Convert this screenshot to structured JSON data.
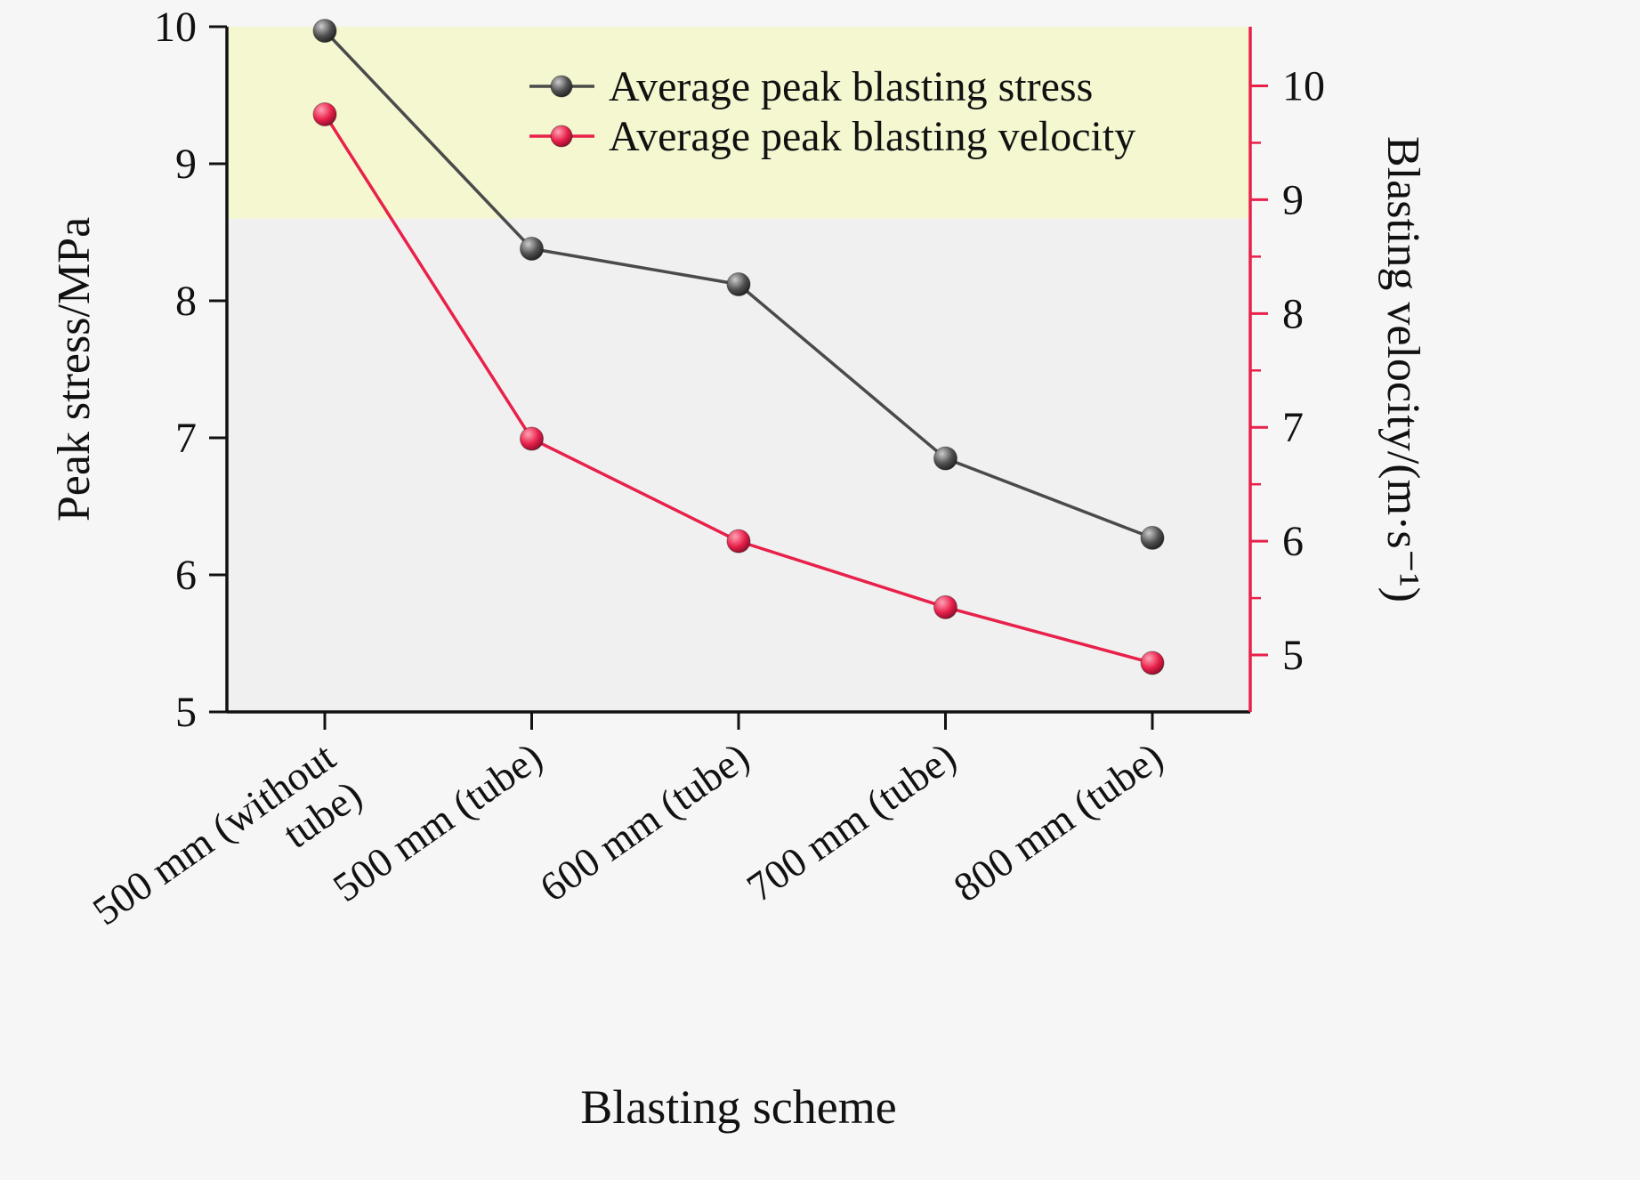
{
  "figure": {
    "background": "#f6f6f6",
    "plot_background": "#f0f0f0"
  },
  "chart_data": {
    "type": "line",
    "xlabel": "Blasting scheme",
    "left_axis": {
      "label": "Peak stress/MPa",
      "min": 5,
      "max": 10,
      "ticks": [
        5,
        6,
        7,
        8,
        9,
        10
      ],
      "color": "#111111"
    },
    "right_axis": {
      "label": "Blasting velocity/(m·s⁻¹)",
      "min": 4.5,
      "max": 10.52,
      "ticks": [
        5,
        6,
        7,
        8,
        9,
        10
      ],
      "minor_step": 0.5,
      "color": "#e8204a"
    },
    "categories": [
      "500 mm (without\ntube)",
      "500 mm (tube)",
      "600 mm (tube)",
      "700 mm (tube)",
      "800 mm (tube)"
    ],
    "series": [
      {
        "name": "Average peak blasting stress",
        "axis": "left",
        "color": "#4a4a4a",
        "marker": "sphere-gray",
        "values": [
          9.97,
          8.38,
          8.12,
          6.85,
          6.27
        ]
      },
      {
        "name": "Average peak blasting velocity",
        "axis": "right",
        "color": "#e8204a",
        "marker": "sphere-red",
        "values": [
          9.75,
          6.9,
          6.0,
          5.42,
          4.93
        ]
      }
    ],
    "band": {
      "axis": "left",
      "from": 8.6,
      "to": 10,
      "color": "#f4f7cf"
    },
    "legend": {
      "position": "top-center",
      "entries": [
        "Average peak blasting stress",
        "Average peak blasting velocity"
      ]
    }
  }
}
